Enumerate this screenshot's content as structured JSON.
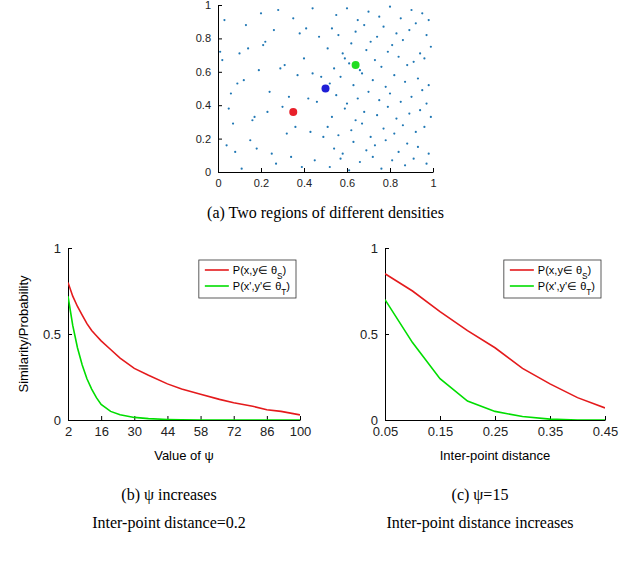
{
  "chart_data": [
    {
      "type": "scatter",
      "title": "(a) Two regions of different densities",
      "xlim": [
        0,
        1
      ],
      "ylim": [
        0,
        1
      ],
      "xticks": [
        0,
        0.2,
        0.4,
        0.6,
        0.8,
        1
      ],
      "yticks": [
        0,
        0.2,
        0.4,
        0.6,
        0.8,
        1
      ],
      "series": [
        {
          "color": "#1f77b4",
          "marker": "point",
          "x": [
            0.03,
            0.08,
            0.12,
            0.17,
            0.22,
            0.27,
            0.31,
            0.36,
            0.41,
            0.46,
            0.05,
            0.1,
            0.15,
            0.2,
            0.24,
            0.29,
            0.34,
            0.38,
            0.43,
            0.48,
            0.02,
            0.07,
            0.13,
            0.18,
            0.23,
            0.28,
            0.33,
            0.39,
            0.44,
            0.49,
            0.04,
            0.09,
            0.14,
            0.19,
            0.25,
            0.3,
            0.35,
            0.4,
            0.45,
            0.47,
            0.06,
            0.11,
            0.16,
            0.21,
            0.26,
            0.32,
            0.37,
            0.42,
            0.01,
            0.44
          ],
          "values": [
            0.91,
            0.12,
            0.55,
            0.33,
            0.78,
            0.05,
            0.64,
            0.27,
            0.86,
            0.42,
            0.38,
            0.71,
            0.19,
            0.95,
            0.48,
            0.62,
            0.09,
            0.83,
            0.24,
            0.57,
            0.67,
            0.29,
            0.88,
            0.14,
            0.36,
            0.97,
            0.45,
            0.03,
            0.59,
            0.21,
            0.16,
            0.53,
            0.74,
            0.61,
            0.11,
            0.39,
            0.92,
            0.68,
            0.07,
            0.81,
            0.47,
            0.02,
            0.31,
            0.76,
            0.85,
            0.23,
            0.58,
            0.44,
            0.72,
            0.98
          ]
        },
        {
          "color": "#1f77b4",
          "marker": "point",
          "x": [
            0.52,
            0.57,
            0.61,
            0.66,
            0.72,
            0.76,
            0.81,
            0.87,
            0.91,
            0.97,
            0.54,
            0.58,
            0.63,
            0.69,
            0.73,
            0.78,
            0.84,
            0.88,
            0.93,
            0.98,
            0.51,
            0.56,
            0.62,
            0.67,
            0.71,
            0.77,
            0.82,
            0.86,
            0.92,
            0.96,
            0.53,
            0.59,
            0.64,
            0.68,
            0.74,
            0.79,
            0.83,
            0.89,
            0.94,
            0.99,
            0.55,
            0.6,
            0.65,
            0.7,
            0.75,
            0.8,
            0.85,
            0.9,
            0.95,
            0.97,
            0.52,
            0.57,
            0.63,
            0.67,
            0.72,
            0.78,
            0.82,
            0.87,
            0.93,
            0.98,
            0.54,
            0.59,
            0.61,
            0.66,
            0.73,
            0.76,
            0.84,
            0.88,
            0.91,
            0.96,
            0.51,
            0.58,
            0.62,
            0.69,
            0.71,
            0.79,
            0.81,
            0.86,
            0.94,
            0.99,
            0.53,
            0.56,
            0.64,
            0.68,
            0.74,
            0.77,
            0.83,
            0.89,
            0.92,
            0.97,
            0.55,
            0.6,
            0.65,
            0.7,
            0.75,
            0.8,
            0.85,
            0.9,
            0.95,
            0.98
          ],
          "values": [
            0.03,
            0.08,
            0.01,
            0.06,
            0.09,
            0.02,
            0.07,
            0.04,
            0.08,
            0.05,
            0.14,
            0.11,
            0.18,
            0.13,
            0.16,
            0.19,
            0.12,
            0.17,
            0.15,
            0.11,
            0.27,
            0.22,
            0.25,
            0.29,
            0.21,
            0.26,
            0.23,
            0.28,
            0.24,
            0.27,
            0.33,
            0.38,
            0.31,
            0.36,
            0.34,
            0.39,
            0.32,
            0.35,
            0.37,
            0.33,
            0.46,
            0.41,
            0.44,
            0.48,
            0.43,
            0.47,
            0.42,
            0.45,
            0.49,
            0.41,
            0.53,
            0.57,
            0.52,
            0.59,
            0.55,
            0.51,
            0.58,
            0.54,
            0.56,
            0.52,
            0.62,
            0.68,
            0.65,
            0.61,
            0.67,
            0.63,
            0.69,
            0.64,
            0.66,
            0.68,
            0.74,
            0.71,
            0.77,
            0.73,
            0.78,
            0.72,
            0.76,
            0.79,
            0.71,
            0.75,
            0.86,
            0.82,
            0.84,
            0.88,
            0.81,
            0.87,
            0.83,
            0.85,
            0.89,
            0.82,
            0.94,
            0.98,
            0.91,
            0.96,
            0.93,
            0.99,
            0.92,
            0.97,
            0.95,
            0.91
          ]
        },
        {
          "marker": "circle",
          "colors": [
            "#e8202a",
            "#1f1fd6",
            "#22dd22"
          ],
          "x": [
            0.35,
            0.5,
            0.64
          ],
          "values": [
            0.36,
            0.5,
            0.64
          ]
        }
      ]
    },
    {
      "type": "line",
      "title": "(b) ψ increases",
      "subtitle": "Inter-point distance=0.2",
      "xlabel": "Value of ψ",
      "ylabel": "Similarity/Probability",
      "xlim": [
        2,
        100
      ],
      "ylim": [
        0,
        1
      ],
      "xticks": [
        2,
        16,
        30,
        44,
        58,
        72,
        86,
        100
      ],
      "yticks": [
        0,
        0.5,
        1
      ],
      "legend": "northeast",
      "x": [
        2,
        4,
        6,
        8,
        10,
        12,
        14,
        16,
        20,
        24,
        30,
        36,
        44,
        50,
        58,
        66,
        72,
        80,
        86,
        92,
        100
      ],
      "series": [
        {
          "name": "P(x,y∈ θS)",
          "color": "#e41a1c",
          "values": [
            0.8,
            0.72,
            0.66,
            0.61,
            0.56,
            0.52,
            0.49,
            0.46,
            0.41,
            0.36,
            0.3,
            0.26,
            0.21,
            0.18,
            0.15,
            0.12,
            0.1,
            0.08,
            0.06,
            0.05,
            0.03
          ]
        },
        {
          "name": "P(x',y'∈ θT)",
          "color": "#00dd00",
          "values": [
            0.72,
            0.55,
            0.42,
            0.32,
            0.24,
            0.18,
            0.13,
            0.09,
            0.05,
            0.03,
            0.015,
            0.008,
            0.003,
            0.001,
            0,
            0,
            0,
            0,
            0,
            0,
            0
          ]
        }
      ]
    },
    {
      "type": "line",
      "title": "(c) ψ=15",
      "subtitle": "Inter-point distance increases",
      "xlabel": "Inter-point distance",
      "xlim": [
        0.05,
        0.45
      ],
      "ylim": [
        0,
        1
      ],
      "xticks": [
        0.05,
        0.15,
        0.25,
        0.35,
        0.45
      ],
      "yticks": [
        0,
        0.5,
        1
      ],
      "legend": "northeast",
      "x": [
        0.05,
        0.1,
        0.15,
        0.2,
        0.25,
        0.3,
        0.35,
        0.4,
        0.45
      ],
      "series": [
        {
          "name": "P(x,y∈ θS)",
          "color": "#e41a1c",
          "values": [
            0.85,
            0.75,
            0.63,
            0.52,
            0.42,
            0.3,
            0.21,
            0.13,
            0.07
          ]
        },
        {
          "name": "P(x',y'∈ θT)",
          "color": "#00dd00",
          "values": [
            0.7,
            0.45,
            0.24,
            0.11,
            0.05,
            0.02,
            0.005,
            0,
            0
          ]
        }
      ]
    }
  ]
}
